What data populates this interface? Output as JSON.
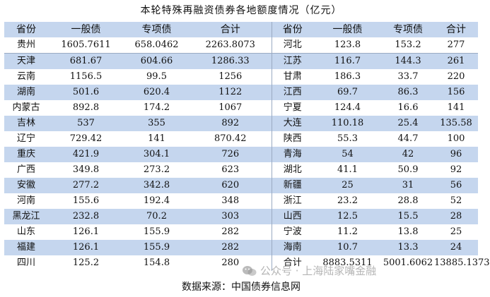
{
  "title": "本轮特殊再融资债券各地额度情况（亿元）",
  "columns": [
    "省份",
    "一般债",
    "专项债",
    "合计",
    "省份",
    "一般债",
    "专项债",
    "合计"
  ],
  "rows": [
    [
      "贵州",
      "1605.7611",
      "658.0462",
      "2263.8073",
      "河北",
      "123.8",
      "153.2",
      "277"
    ],
    [
      "天津",
      "681.67",
      "604.66",
      "1286.33",
      "江苏",
      "116.7",
      "144.3",
      "261"
    ],
    [
      "云南",
      "1156.5",
      "99.5",
      "1256",
      "甘肃",
      "186.3",
      "33.7",
      "220"
    ],
    [
      "湖南",
      "501.6",
      "620.4",
      "1122",
      "江西",
      "69.7",
      "86.3",
      "156"
    ],
    [
      "内蒙古",
      "892.8",
      "174.2",
      "1067",
      "宁夏",
      "124.4",
      "16.6",
      "141"
    ],
    [
      "吉林",
      "537",
      "355",
      "892",
      "大连",
      "110.18",
      "25.4",
      "135.58"
    ],
    [
      "辽宁",
      "729.42",
      "141",
      "870.42",
      "陕西",
      "55.3",
      "44.7",
      "100"
    ],
    [
      "重庆",
      "421.9",
      "304.1",
      "726",
      "青海",
      "54",
      "42",
      "96"
    ],
    [
      "广西",
      "349.8",
      "273.2",
      "623",
      "湖北",
      "41.1",
      "50.9",
      "92"
    ],
    [
      "安徽",
      "277.2",
      "342.8",
      "620",
      "新疆",
      "25",
      "31",
      "56"
    ],
    [
      "河南",
      "155.6",
      "192.4",
      "348",
      "浙江",
      "23.2",
      "28.8",
      "52"
    ],
    [
      "黑龙江",
      "232.8",
      "70.2",
      "303",
      "山西",
      "12.5",
      "15.5",
      "28"
    ],
    [
      "山东",
      "126.1",
      "155.9",
      "282",
      "宁波",
      "11.2",
      "13.8",
      "25"
    ],
    [
      "福建",
      "126.1",
      "155.9",
      "282",
      "海南",
      "10.7",
      "13.3",
      "24"
    ],
    [
      "四川",
      "125.2",
      "154.8",
      "280",
      "合计",
      "8883.5311",
      "5001.6062",
      "13885.1373"
    ]
  ],
  "watermark": "公众号 · 上海陆家嘴金融",
  "source": "数据来源：中国债券信息网",
  "colors": {
    "band": "#c5d6ee",
    "rule": "#9aaac2",
    "text": "#111111"
  }
}
